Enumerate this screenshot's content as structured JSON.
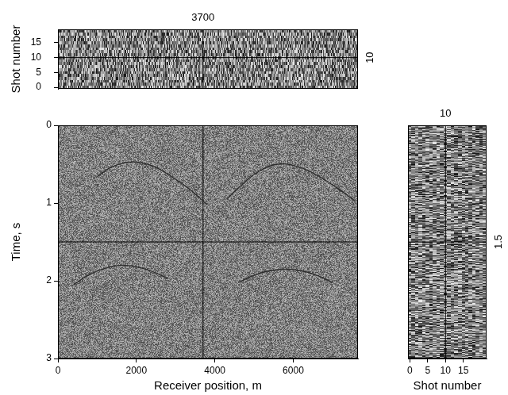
{
  "chart_data": [
    {
      "type": "heatmap",
      "x_label": "Receiver position, m",
      "y_label": "Time, s",
      "xlim": [
        0,
        7650
      ],
      "xticks": [
        0,
        2000,
        4000,
        6000
      ],
      "ylim": [
        3,
        0
      ],
      "yticks": [
        0,
        1,
        2,
        3
      ],
      "grid": false,
      "color": "#2b2b2b",
      "series": [
        {
          "x": [
            1000,
            1400,
            1900,
            2400,
            2900,
            3400,
            3800
          ],
          "values": [
            0.66,
            0.53,
            0.47,
            0.52,
            0.66,
            0.84,
            1.02
          ]
        },
        {
          "x": [
            4300,
            4700,
            5100,
            5600,
            6100,
            6600,
            7100,
            7600
          ],
          "values": [
            0.95,
            0.76,
            0.6,
            0.5,
            0.53,
            0.64,
            0.8,
            0.98
          ]
        },
        {
          "x": [
            400,
            800,
            1200,
            1600,
            2000,
            2400,
            2800
          ],
          "values": [
            2.05,
            1.92,
            1.84,
            1.8,
            1.82,
            1.88,
            1.97
          ]
        },
        {
          "x": [
            4600,
            5000,
            5400,
            5800,
            6200,
            6600,
            7000
          ],
          "values": [
            2.02,
            1.93,
            1.87,
            1.85,
            1.87,
            1.93,
            2.02
          ]
        }
      ]
    },
    {
      "type": "heatmap",
      "y_label": "Shot number",
      "xlim": [
        0,
        7650
      ],
      "ylim": [
        -0.5,
        19.5
      ],
      "yticks": [
        0,
        5,
        10,
        15
      ],
      "grid": false,
      "tick_labels": "y",
      "crosshair": {
        "x": 3700,
        "y": 10
      }
    },
    {
      "type": "heatmap",
      "x_label": "Shot number",
      "xlim": [
        -0.5,
        21.5
      ],
      "xticks": [
        0,
        5,
        10,
        15
      ],
      "ylim": [
        3,
        0
      ],
      "grid": false,
      "tick_labels": "x",
      "crosshair": {
        "x": 10,
        "y": 1.5
      }
    }
  ]
}
